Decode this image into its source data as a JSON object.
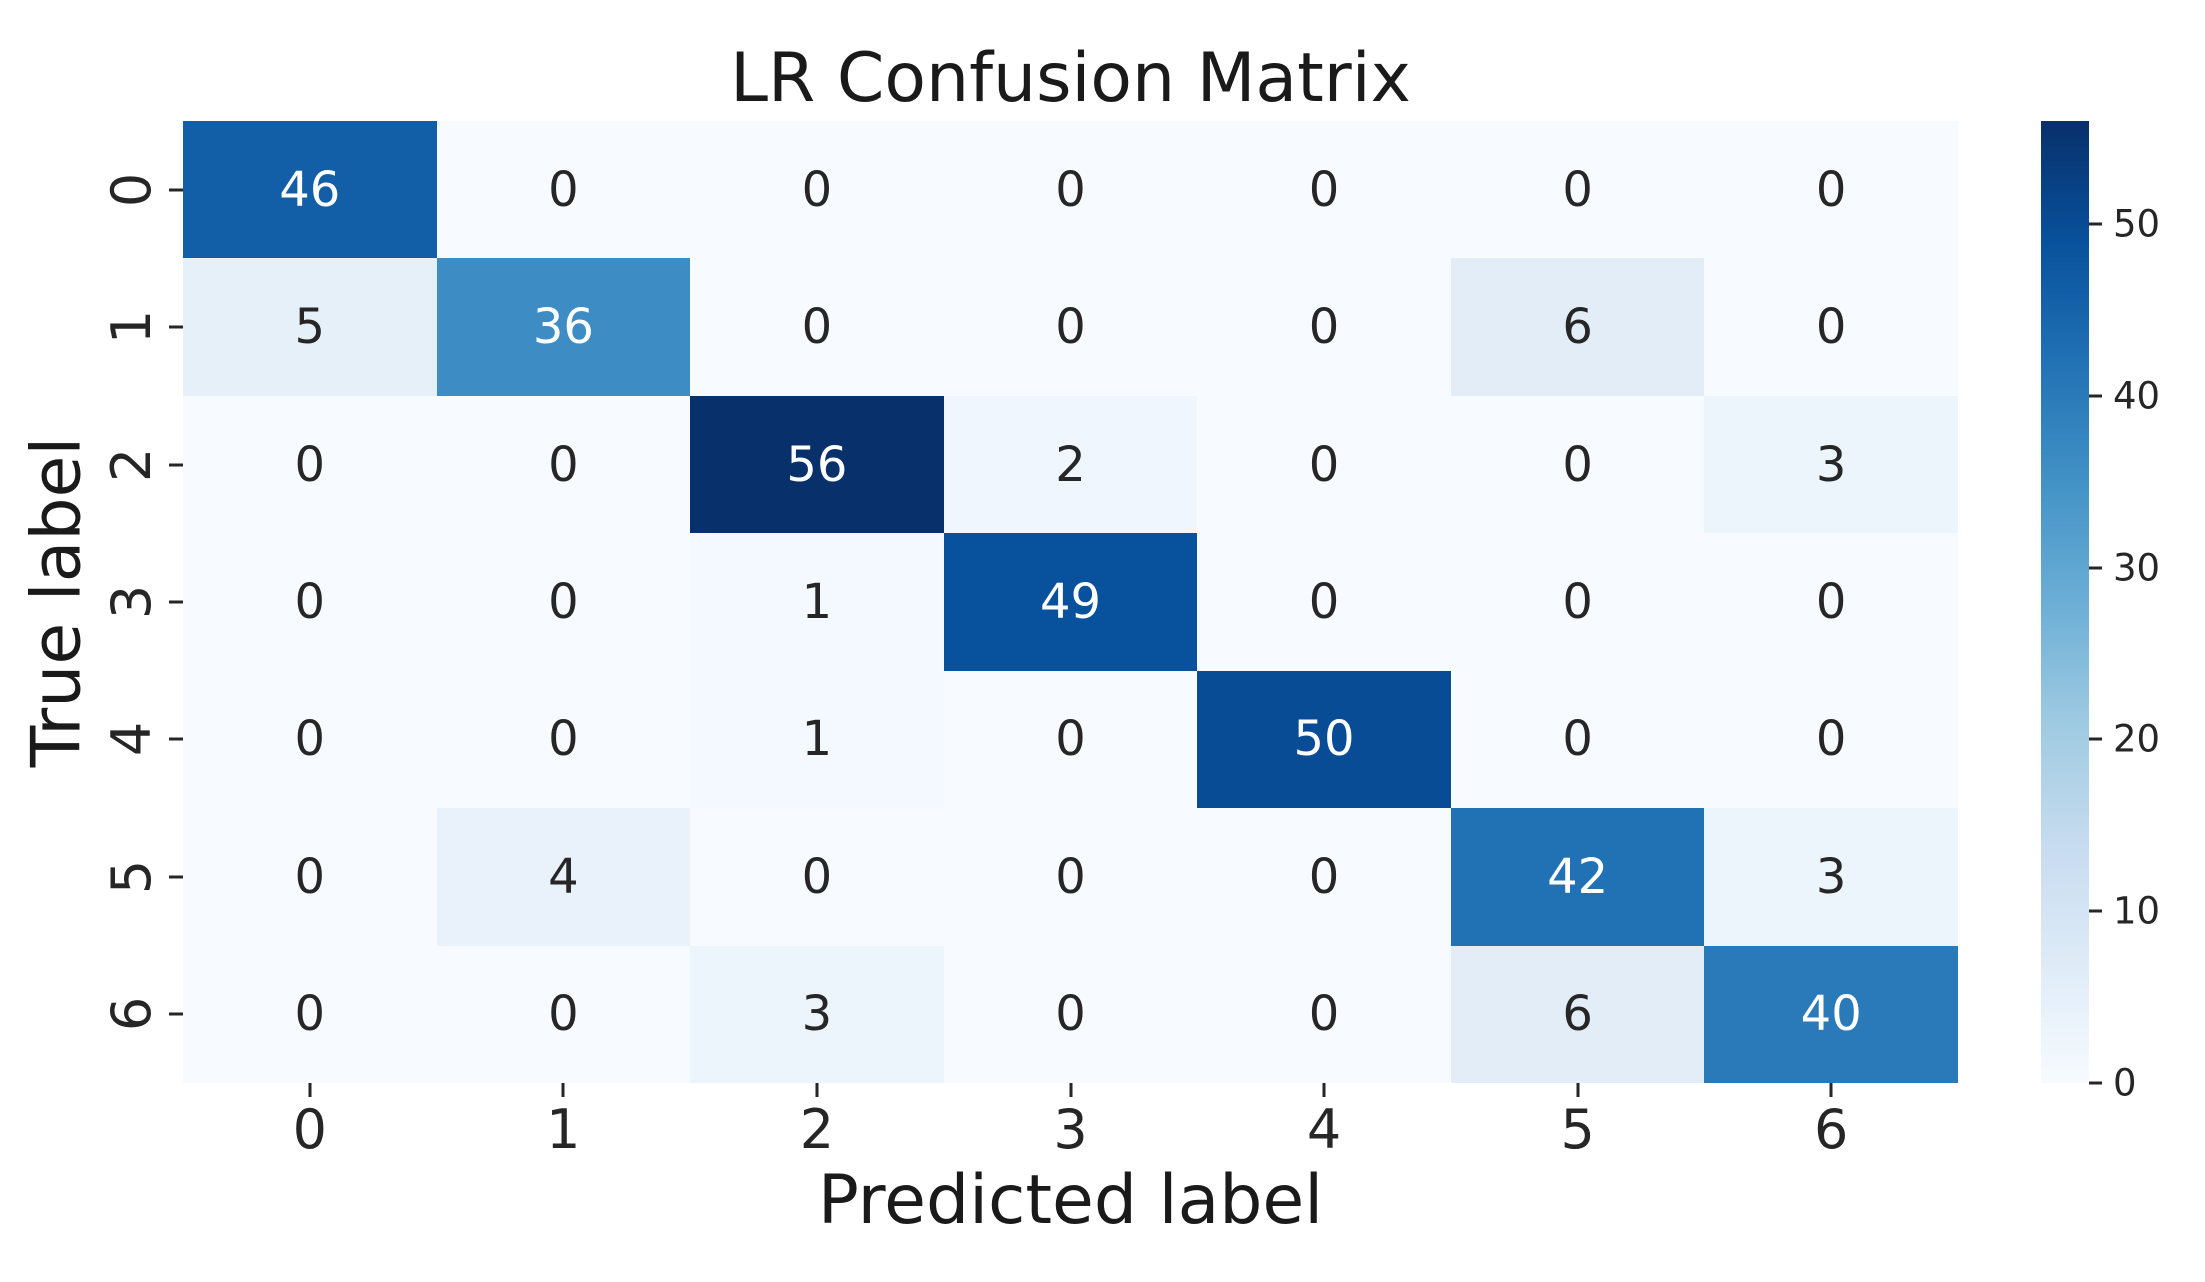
{
  "chart_data": {
    "type": "heatmap",
    "title": "LR Confusion Matrix",
    "xlabel": "Predicted label",
    "ylabel": "True label",
    "x_tick_labels": [
      "0",
      "1",
      "2",
      "3",
      "4",
      "5",
      "6"
    ],
    "y_tick_labels": [
      "0",
      "1",
      "2",
      "3",
      "4",
      "5",
      "6"
    ],
    "matrix": [
      [
        46,
        0,
        0,
        0,
        0,
        0,
        0
      ],
      [
        5,
        36,
        0,
        0,
        0,
        6,
        0
      ],
      [
        0,
        0,
        56,
        2,
        0,
        0,
        3
      ],
      [
        0,
        0,
        1,
        49,
        0,
        0,
        0
      ],
      [
        0,
        0,
        1,
        0,
        50,
        0,
        0
      ],
      [
        0,
        4,
        0,
        0,
        0,
        42,
        3
      ],
      [
        0,
        0,
        3,
        0,
        0,
        6,
        40
      ]
    ],
    "colormap": "Blues",
    "vmin": 0,
    "vmax": 56,
    "colorbar_ticks": [
      0,
      10,
      20,
      30,
      40,
      50
    ],
    "legend_position": "right-colorbar",
    "grid": false
  },
  "colors": {
    "background": "#ffffff",
    "title_text": "#1a1a1a",
    "tick_text": "#262626",
    "annotation_dark": "#262626",
    "annotation_light": "#ffffff",
    "blues_stops": [
      "#f7fbff",
      "#deebf7",
      "#c6dbef",
      "#9ecae1",
      "#6baed6",
      "#4292c6",
      "#2171b5",
      "#08519c",
      "#08306b"
    ]
  }
}
